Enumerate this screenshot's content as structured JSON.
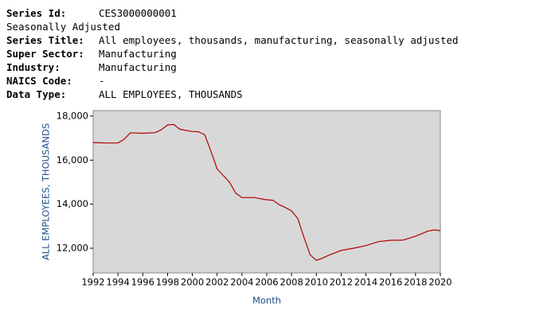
{
  "header": {
    "fields": [
      {
        "label": "Series Id:",
        "value": "CES3000000001"
      },
      {
        "label": "Seasonally Adjusted"
      },
      {
        "label": "Series Title:",
        "value": "All employees, thousands, manufacturing, seasonally adjusted"
      },
      {
        "label": "Super Sector:",
        "value": "Manufacturing"
      },
      {
        "label": "Industry:",
        "value": "Manufacturing"
      },
      {
        "label": "NAICS Code:",
        "value": "-"
      },
      {
        "label": "Data Type:",
        "value": "ALL EMPLOYEES, THOUSANDS"
      }
    ]
  },
  "chart_data": {
    "type": "line",
    "y_label": "ALL EMPLOYEES, THOUSANDS",
    "x_label": "Month",
    "x": [
      1992,
      1993,
      1994,
      1994.5,
      1995,
      1996,
      1997,
      1997.5,
      1998,
      1998.5,
      1999,
      2000,
      2000.5,
      2001,
      2001.5,
      2002,
      2003,
      2003.5,
      2004,
      2005,
      2006,
      2006.5,
      2007,
      2007.5,
      2008,
      2008.5,
      2009,
      2009.5,
      2010,
      2010.5,
      2011,
      2012,
      2013,
      2014,
      2015,
      2016,
      2017,
      2018,
      2019,
      2019.5,
      2020
    ],
    "series": [
      {
        "name": "Manufacturing",
        "color": "#b00000",
        "values": [
          16800,
          16780,
          16780,
          16950,
          17240,
          17220,
          17250,
          17380,
          17600,
          17620,
          17400,
          17300,
          17290,
          17150,
          16400,
          15600,
          15000,
          14500,
          14300,
          14300,
          14200,
          14180,
          13980,
          13850,
          13700,
          13350,
          12500,
          11700,
          11450,
          11550,
          11680,
          11900,
          12000,
          12120,
          12300,
          12360,
          12370,
          12550,
          12780,
          12830,
          12800
        ]
      }
    ],
    "xlim": [
      1992,
      2020
    ],
    "ylim": [
      10880,
      18250
    ],
    "xticks": [
      1992,
      1994,
      1996,
      1998,
      2000,
      2002,
      2004,
      2006,
      2008,
      2010,
      2012,
      2014,
      2016,
      2018,
      2020
    ],
    "yticks": [
      {
        "value": 12000,
        "label": "12,000"
      },
      {
        "value": 14000,
        "label": "14,000"
      },
      {
        "value": 16000,
        "label": "16,000"
      },
      {
        "value": 18000,
        "label": "18,000"
      }
    ],
    "background": "#d8d8d8"
  }
}
